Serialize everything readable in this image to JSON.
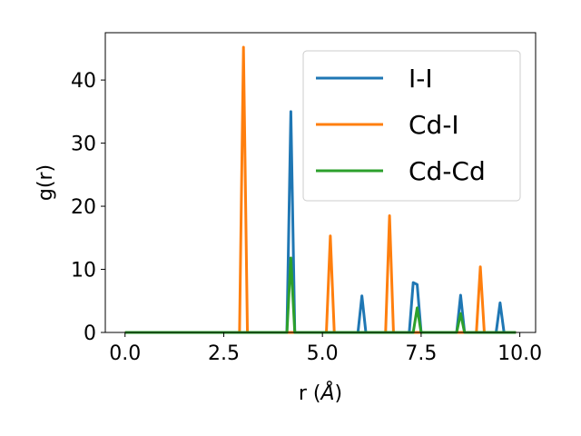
{
  "chart_data": {
    "type": "line",
    "xlabel_main": "r (",
    "xlabel_unit": "Å",
    "xlabel_close": ")",
    "ylabel": "g(r)",
    "xlim": [
      -0.5,
      10.4
    ],
    "ylim": [
      0,
      47.5
    ],
    "xticks": [
      0.0,
      2.5,
      5.0,
      7.5,
      10.0
    ],
    "xtick_labels": [
      "0.0",
      "2.5",
      "5.0",
      "7.5",
      "10.0"
    ],
    "yticks": [
      0,
      10,
      20,
      30,
      40
    ],
    "ytick_labels": [
      "0",
      "10",
      "20",
      "30",
      "40"
    ],
    "grid": false,
    "legend_position": "top-right",
    "series": [
      {
        "name": "I-I",
        "color": "#1f77b4",
        "points": [
          [
            0.0,
            0
          ],
          [
            4.1,
            0
          ],
          [
            4.2,
            35
          ],
          [
            4.3,
            0
          ],
          [
            5.9,
            0
          ],
          [
            6.0,
            5.8
          ],
          [
            6.1,
            0
          ],
          [
            7.2,
            0
          ],
          [
            7.3,
            7.9
          ],
          [
            7.4,
            7.6
          ],
          [
            7.5,
            0
          ],
          [
            8.4,
            0
          ],
          [
            8.5,
            5.9
          ],
          [
            8.6,
            0
          ],
          [
            9.4,
            0
          ],
          [
            9.5,
            4.7
          ],
          [
            9.6,
            0
          ],
          [
            9.9,
            0
          ]
        ]
      },
      {
        "name": "Cd-I",
        "color": "#ff7f0e",
        "points": [
          [
            0.0,
            0
          ],
          [
            2.9,
            0
          ],
          [
            3.0,
            45.2
          ],
          [
            3.1,
            0
          ],
          [
            5.1,
            0
          ],
          [
            5.2,
            15.3
          ],
          [
            5.3,
            0
          ],
          [
            6.6,
            0
          ],
          [
            6.7,
            18.5
          ],
          [
            6.8,
            0
          ],
          [
            8.9,
            0
          ],
          [
            9.0,
            10.4
          ],
          [
            9.1,
            0
          ],
          [
            9.9,
            0
          ]
        ]
      },
      {
        "name": "Cd-Cd",
        "color": "#2ca02c",
        "points": [
          [
            0.0,
            0
          ],
          [
            4.1,
            0
          ],
          [
            4.2,
            11.8
          ],
          [
            4.3,
            0
          ],
          [
            7.3,
            0
          ],
          [
            7.4,
            3.9
          ],
          [
            7.5,
            0
          ],
          [
            8.4,
            0
          ],
          [
            8.5,
            3.0
          ],
          [
            8.6,
            0
          ],
          [
            9.9,
            0
          ]
        ]
      }
    ]
  }
}
